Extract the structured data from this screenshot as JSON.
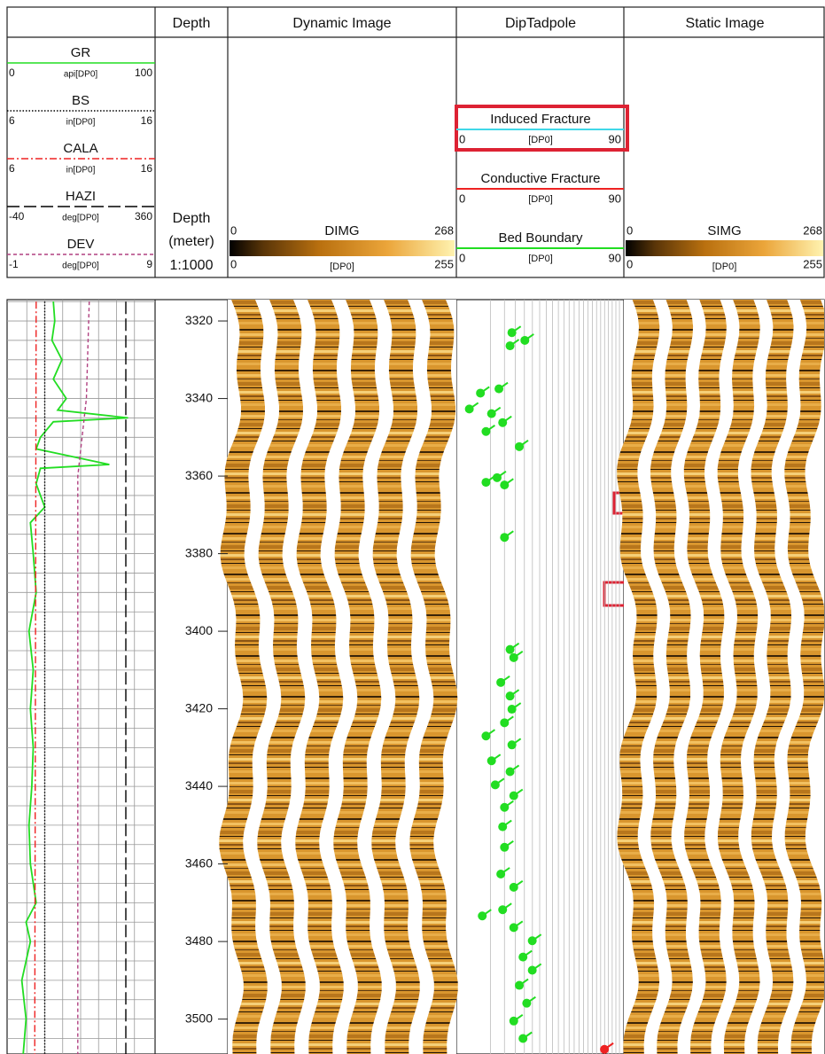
{
  "tracks": {
    "depth": "Depth",
    "dynamic": "Dynamic Image",
    "tadpole": "DipTadpole",
    "static": "Static Image"
  },
  "curves": [
    {
      "name": "GR",
      "min": 0,
      "unit": "api[DP0]",
      "max": 100,
      "color": "#22dd22",
      "style": "solid",
      "depths": [
        3315,
        3320,
        3325,
        3330,
        3335,
        3340,
        3343,
        3345,
        3346,
        3350,
        3353,
        3357,
        3358,
        3362,
        3368,
        3372,
        3380,
        3390,
        3400,
        3410,
        3420,
        3430,
        3440,
        3450,
        3460,
        3470,
        3475,
        3480,
        3490,
        3500,
        3509
      ],
      "values": [
        31,
        32,
        30,
        37,
        31,
        40,
        34,
        83,
        31,
        22,
        19,
        70,
        22,
        19,
        25,
        15,
        17,
        19,
        14,
        17,
        15,
        17,
        16,
        14,
        15,
        19,
        12,
        15,
        9,
        12,
        10
      ]
    },
    {
      "name": "BS",
      "min": 6,
      "unit": "in[DP0]",
      "max": 16,
      "color": "#000000",
      "style": "dotted",
      "depths": [
        3315,
        3509
      ],
      "values": [
        8.5,
        8.5
      ]
    },
    {
      "name": "CALA",
      "min": 6,
      "unit": "in[DP0]",
      "max": 16,
      "color": "#ee2222",
      "style": "dashdot",
      "depths": [
        3315,
        3509
      ],
      "values": [
        7.9,
        7.8
      ]
    },
    {
      "name": "HAZI",
      "min": -40,
      "unit": "deg[DP0]",
      "max": 360,
      "color": "#000000",
      "style": "dash",
      "depths": [
        3315,
        3509
      ],
      "values": [
        286,
        286
      ]
    },
    {
      "name": "DEV",
      "min": -1,
      "unit": "deg[DP0]",
      "max": 9,
      "color": "#b04080",
      "style": "dashed",
      "depths": [
        3315,
        3340,
        3350,
        3360,
        3509
      ],
      "values": [
        4.6,
        4.4,
        4.1,
        3.8,
        3.8
      ]
    }
  ],
  "depth_label": {
    "title": "Depth",
    "unit": "(meter)",
    "scale": "1:1000"
  },
  "depth_range": [
    3314.5,
    3509
  ],
  "depth_ticks": [
    3320,
    3340,
    3360,
    3380,
    3400,
    3420,
    3440,
    3460,
    3480,
    3500
  ],
  "dynamic_image": {
    "name": "DIMG",
    "display_min": 0,
    "display_max": 268,
    "unit": "[DP0]",
    "raw_min": 0,
    "raw_max": 255
  },
  "static_image": {
    "name": "SIMG",
    "display_min": 0,
    "display_max": 268,
    "unit": "[DP0]",
    "raw_min": 0,
    "raw_max": 255
  },
  "dip_classes": [
    {
      "name": "Induced Fracture",
      "color": "#40d8e8",
      "min": 0,
      "unit": "[DP0]",
      "max": 90
    },
    {
      "name": "Conductive Fracture",
      "color": "#ee2222",
      "min": 0,
      "unit": "[DP0]",
      "max": 90,
      "picks": [
        {
          "depth": 3507.8,
          "dip": 80
        }
      ]
    },
    {
      "name": "Bed Boundary",
      "color": "#22dd22",
      "min": 0,
      "unit": "[DP0]",
      "max": 90,
      "picks": [
        {
          "depth": 3323,
          "dip": 30
        },
        {
          "depth": 3325,
          "dip": 37
        },
        {
          "depth": 3326.4,
          "dip": 29
        },
        {
          "depth": 3338.6,
          "dip": 13
        },
        {
          "depth": 3337.5,
          "dip": 23
        },
        {
          "depth": 3342.7,
          "dip": 7
        },
        {
          "depth": 3343.9,
          "dip": 19
        },
        {
          "depth": 3346.2,
          "dip": 25
        },
        {
          "depth": 3348.5,
          "dip": 16
        },
        {
          "depth": 3352.4,
          "dip": 34
        },
        {
          "depth": 3360.4,
          "dip": 22
        },
        {
          "depth": 3361.6,
          "dip": 16
        },
        {
          "depth": 3362.3,
          "dip": 26
        },
        {
          "depth": 3375.8,
          "dip": 26
        },
        {
          "depth": 3404.7,
          "dip": 29
        },
        {
          "depth": 3406.8,
          "dip": 31
        },
        {
          "depth": 3413.2,
          "dip": 24
        },
        {
          "depth": 3416.7,
          "dip": 29
        },
        {
          "depth": 3420.1,
          "dip": 30
        },
        {
          "depth": 3423.6,
          "dip": 26
        },
        {
          "depth": 3427,
          "dip": 16
        },
        {
          "depth": 3429.3,
          "dip": 30
        },
        {
          "depth": 3433.4,
          "dip": 19
        },
        {
          "depth": 3436.2,
          "dip": 29
        },
        {
          "depth": 3439.6,
          "dip": 21
        },
        {
          "depth": 3442.4,
          "dip": 31
        },
        {
          "depth": 3445.4,
          "dip": 26
        },
        {
          "depth": 3450.4,
          "dip": 25
        },
        {
          "depth": 3455.7,
          "dip": 26
        },
        {
          "depth": 3462.6,
          "dip": 24
        },
        {
          "depth": 3466,
          "dip": 31
        },
        {
          "depth": 3471.8,
          "dip": 25
        },
        {
          "depth": 3473.4,
          "dip": 14
        },
        {
          "depth": 3476.4,
          "dip": 31
        },
        {
          "depth": 3479.8,
          "dip": 41
        },
        {
          "depth": 3484,
          "dip": 36
        },
        {
          "depth": 3487.4,
          "dip": 41
        },
        {
          "depth": 3491.3,
          "dip": 34
        },
        {
          "depth": 3495.9,
          "dip": 38
        },
        {
          "depth": 3500.5,
          "dip": 31
        },
        {
          "depth": 3505,
          "dip": 36
        }
      ]
    }
  ]
}
